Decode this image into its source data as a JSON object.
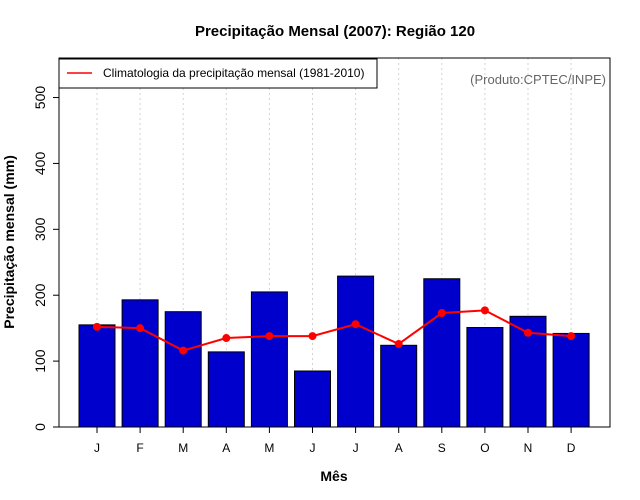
{
  "chart_data": {
    "type": "bar",
    "title": "Precipitação Mensal (2007): Região 120",
    "xlabel": "Mês",
    "ylabel": "Precipitação mensal (mm)",
    "ylim": [
      0,
      560
    ],
    "yticks": [
      0,
      100,
      200,
      300,
      400,
      500
    ],
    "categories": [
      "J",
      "F",
      "M",
      "A",
      "M",
      "J",
      "J",
      "A",
      "S",
      "O",
      "N",
      "D"
    ],
    "series": [
      {
        "name": "Precipitação mensal 2007",
        "type": "bar",
        "color": "#0000cd",
        "values": [
          155,
          193,
          175,
          114,
          205,
          85,
          229,
          124,
          225,
          151,
          168,
          142
        ]
      },
      {
        "name": "Climatologia da precipitação mensal (1981-2010)",
        "type": "line",
        "color": "#ff0000",
        "values": [
          152,
          150,
          116,
          135,
          138,
          138,
          156,
          126,
          173,
          177,
          143,
          138
        ]
      }
    ],
    "legend": {
      "label": "Climatologia da precipitação mensal (1981-2010)",
      "position": "top-left"
    },
    "source_note": "(Produto:CPTEC/INPE)",
    "grid": "vertical dotted"
  }
}
